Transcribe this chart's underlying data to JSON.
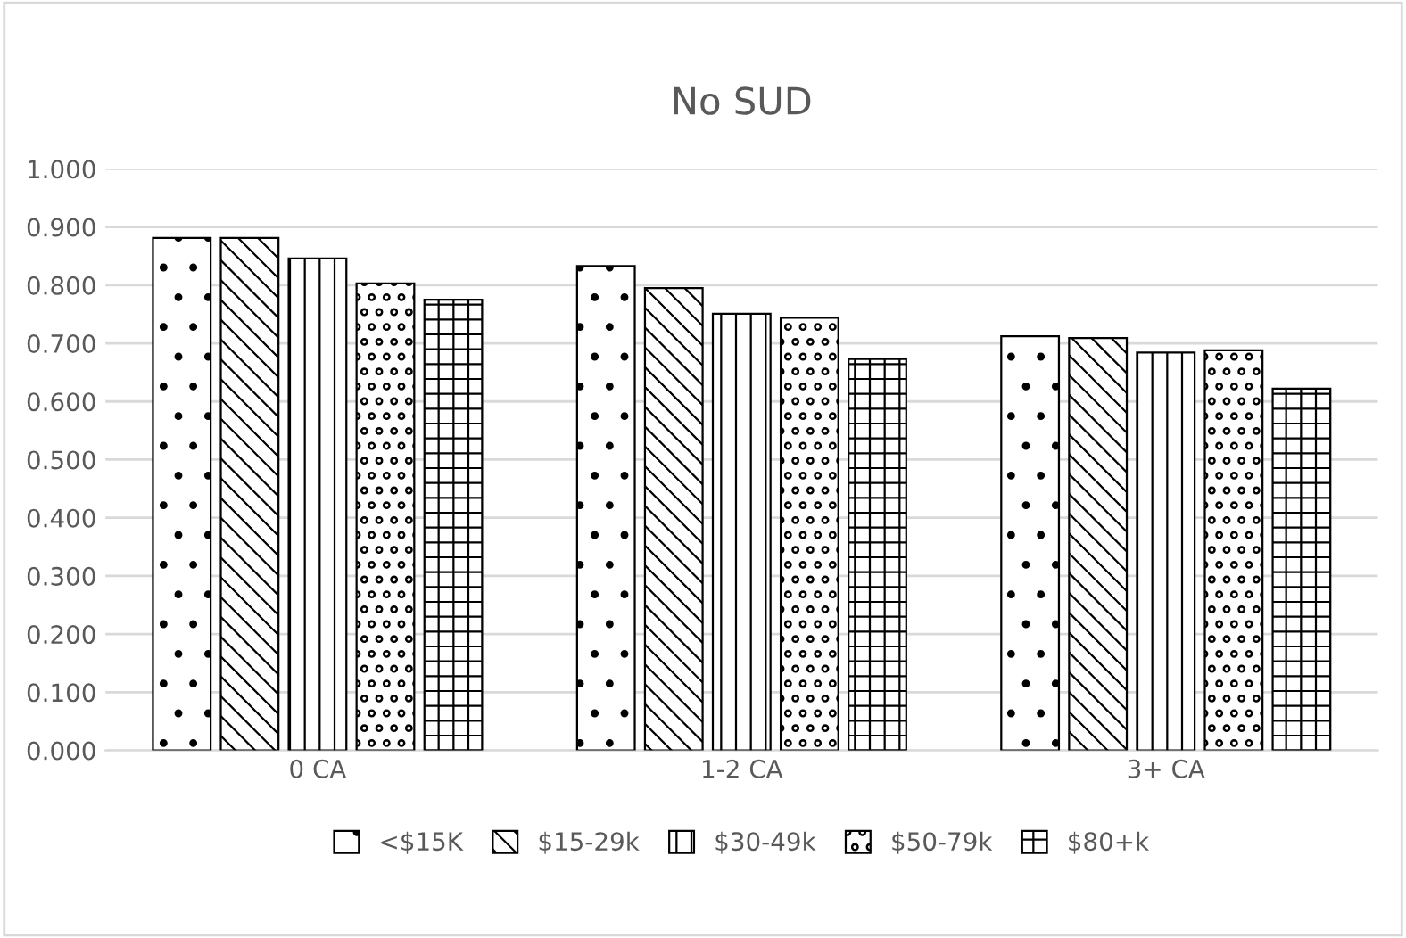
{
  "chart_data": {
    "type": "bar",
    "title": "No SUD",
    "categories": [
      "0 CA",
      "1-2 CA",
      "3+ CA"
    ],
    "series": [
      {
        "name": "<$15K",
        "color": "#000000",
        "values": [
          0.881,
          0.833,
          0.712
        ]
      },
      {
        "name": "$15-29k",
        "color": "#000000",
        "values": [
          0.881,
          0.795,
          0.709
        ]
      },
      {
        "name": "$30-49k",
        "color": "#000000",
        "values": [
          0.846,
          0.751,
          0.684
        ]
      },
      {
        "name": "$50-79k",
        "color": "#000000",
        "values": [
          0.803,
          0.744,
          0.688
        ]
      },
      {
        "name": "$80+k",
        "color": "#000000",
        "values": [
          0.775,
          0.673,
          0.622
        ]
      }
    ],
    "ylim": [
      0,
      1
    ],
    "yticks": [
      {
        "value": 0,
        "label": "0.000"
      },
      {
        "value": 0.1,
        "label": "0.100"
      },
      {
        "value": 0.2,
        "label": "0.200"
      },
      {
        "value": 0.3,
        "label": "0.300"
      },
      {
        "value": 0.4,
        "label": "0.400"
      },
      {
        "value": 0.5,
        "label": "0.500"
      },
      {
        "value": 0.6,
        "label": "0.600"
      },
      {
        "value": 0.7,
        "label": "0.700"
      },
      {
        "value": 0.8,
        "label": "0.800"
      },
      {
        "value": 0.9,
        "label": "0.900"
      },
      {
        "value": 1,
        "label": "1.000"
      }
    ],
    "grid": "y",
    "legend": "bottom"
  }
}
